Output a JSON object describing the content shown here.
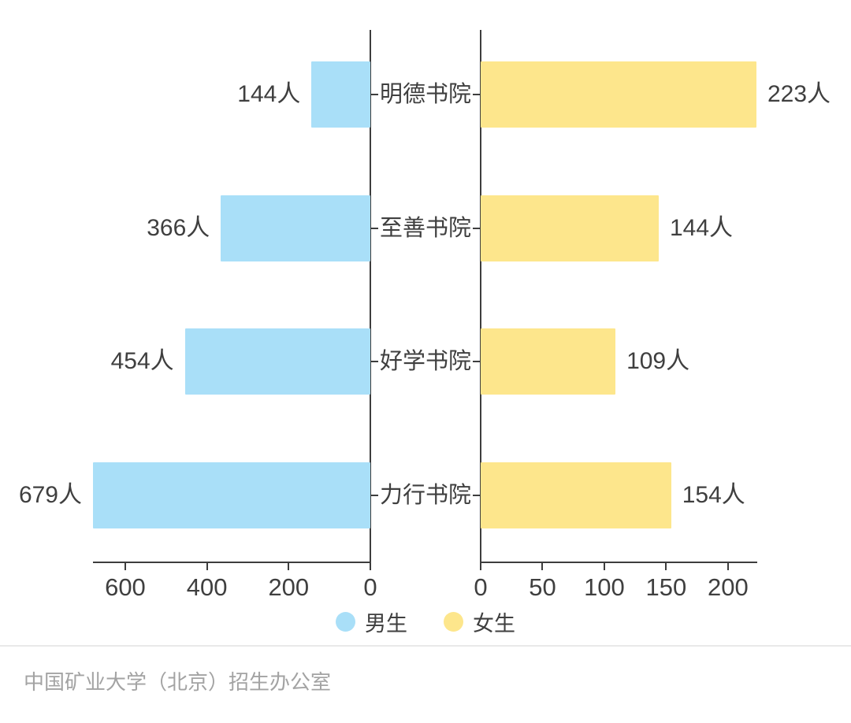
{
  "chart_data": {
    "type": "bar",
    "subtype": "tornado",
    "orientation": "horizontal",
    "title": "",
    "categories": [
      "明德书院",
      "至善书院",
      "好学书院",
      "力行书院"
    ],
    "unit_suffix": "人",
    "grid": false,
    "legend_position": "bottom",
    "series": [
      {
        "name": "男生",
        "side": "left",
        "color": "#A9DFF8",
        "values": [
          144,
          366,
          454,
          679
        ],
        "labels": [
          "144人",
          "366人",
          "454人",
          "679人"
        ],
        "axis_ticks": [
          "600",
          "400",
          "200",
          "0"
        ],
        "axis_tick_values": [
          600,
          400,
          200,
          0
        ],
        "axis_range": [
          0,
          679
        ]
      },
      {
        "name": "女生",
        "side": "right",
        "color": "#FDE68C",
        "values": [
          223,
          144,
          109,
          154
        ],
        "labels": [
          "223人",
          "144人",
          "109人",
          "154人"
        ],
        "axis_ticks": [
          "0",
          "50",
          "100",
          "150",
          "200"
        ],
        "axis_tick_values": [
          0,
          50,
          100,
          150,
          200
        ],
        "axis_range": [
          0,
          223
        ]
      }
    ],
    "legend": [
      {
        "label": "男生",
        "color": "#A9DFF8"
      },
      {
        "label": "女生",
        "color": "#FDE68C"
      }
    ]
  },
  "footer": {
    "text": "中国矿业大学（北京）招生办公室"
  },
  "colors": {
    "background": "#ffffff",
    "axis": "#3d3d3d",
    "text": "#3f3f3f",
    "male_bar": "#A9DFF8",
    "female_bar": "#FDE68C",
    "divider": "#e9e9e9",
    "footer_text": "#a3a3a3"
  }
}
